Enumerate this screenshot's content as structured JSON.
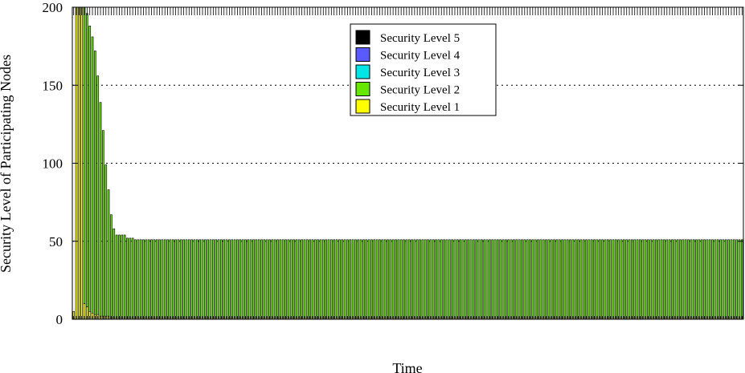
{
  "chart_data": {
    "type": "bar",
    "title": "",
    "xlabel": "Time",
    "ylabel": "Security Level of Participating Nodes",
    "ylim": [
      0,
      200
    ],
    "yticks": [
      0,
      50,
      100,
      150,
      200
    ],
    "grid": "horizontal dotted",
    "legend_position": "top-center",
    "stacked": true,
    "series": [
      {
        "name": "Security Level 5",
        "color": "#000000"
      },
      {
        "name": "Security Level 4",
        "color": "#5a5aff"
      },
      {
        "name": "Security Level 3",
        "color": "#00e5e5"
      },
      {
        "name": "Security Level 2",
        "color": "#66e600"
      },
      {
        "name": "Security Level 1",
        "color": "#ffff00"
      }
    ],
    "bars_initial": [
      {
        "level1": 5,
        "level2": 0
      },
      {
        "level1": 200,
        "level2": 0
      },
      {
        "level1": 200,
        "level2": 0
      },
      {
        "level1": 200,
        "level2": 0
      },
      {
        "level1": 10,
        "level2": 190
      },
      {
        "level1": 8,
        "level2": 188
      },
      {
        "level1": 5,
        "level2": 183
      },
      {
        "level1": 4,
        "level2": 177
      },
      {
        "level1": 3,
        "level2": 169
      },
      {
        "level1": 3,
        "level2": 153
      },
      {
        "level1": 2,
        "level2": 137
      },
      {
        "level1": 2,
        "level2": 119
      },
      {
        "level1": 2,
        "level2": 97
      },
      {
        "level1": 2,
        "level2": 81
      },
      {
        "level1": 1,
        "level2": 66
      },
      {
        "level1": 1,
        "level2": 57
      },
      {
        "level1": 1,
        "level2": 53
      },
      {
        "level1": 1,
        "level2": 53
      },
      {
        "level1": 1,
        "level2": 53
      },
      {
        "level1": 1,
        "level2": 53
      },
      {
        "level1": 1,
        "level2": 51
      },
      {
        "level1": 1,
        "level2": 51
      },
      {
        "level1": 1,
        "level2": 51
      },
      {
        "level1": 1,
        "level2": 50
      }
    ],
    "steady_state": {
      "count": 226,
      "level1": 1,
      "level2": 50
    },
    "total_bars": 250
  }
}
